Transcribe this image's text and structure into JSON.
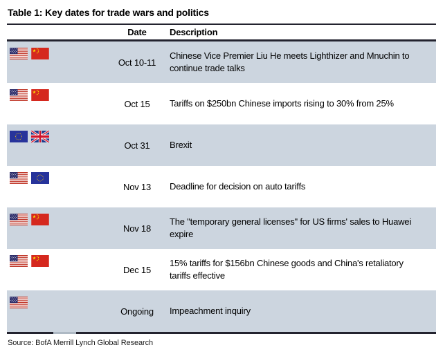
{
  "title": "Table 1: Key dates for trade wars and politics",
  "header": {
    "date": "Date",
    "description": "Description"
  },
  "rows": [
    {
      "flags": [
        "usa",
        "china"
      ],
      "date": "Oct 10-11",
      "description": "Chinese Vice Premier Liu He meets Lighthizer and Mnuchin to continue trade talks",
      "shaded": true
    },
    {
      "flags": [
        "usa",
        "china"
      ],
      "date": "Oct 15",
      "description": "Tariffs on $250bn Chinese imports rising to 30% from 25%",
      "shaded": false
    },
    {
      "flags": [
        "eu",
        "uk"
      ],
      "date": "Oct 31",
      "description": "Brexit",
      "shaded": true
    },
    {
      "flags": [
        "usa",
        "eu"
      ],
      "date": "Nov 13",
      "description": "Deadline for decision on auto tariffs",
      "shaded": false
    },
    {
      "flags": [
        "usa",
        "china"
      ],
      "date": "Nov 18",
      "description": "The \"temporary general licenses\" for US firms' sales to Huawei expire",
      "shaded": true
    },
    {
      "flags": [
        "usa",
        "china"
      ],
      "date": "Dec 15",
      "description": "15% tariffs for $156bn Chinese goods and China's retaliatory tariffs effective",
      "shaded": false
    },
    {
      "flags": [
        "usa"
      ],
      "date": "Ongoing",
      "description": "Impeachment inquiry",
      "shaded": true
    }
  ],
  "source": "Source: BofA Merrill Lynch Global Research",
  "colors": {
    "row_shade": "#ccd5df",
    "rule": "#23232f",
    "text": "#000000",
    "china_red": "#d5281e",
    "eu_blue": "#27339b",
    "us_canton_navy": "#2e2e6b",
    "uk_red": "#cf142b",
    "uk_blue": "#1e3c8c",
    "star_yellow": "#ffde00"
  }
}
